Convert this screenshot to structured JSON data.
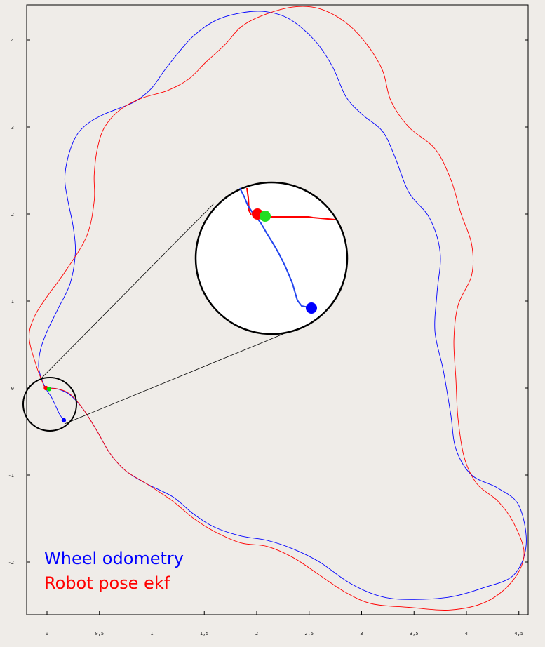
{
  "chart_data": {
    "type": "line",
    "title": "",
    "xlabel": "",
    "ylabel": "",
    "xlim": [
      -0.2,
      4.6
    ],
    "ylim": [
      -2.6,
      4.4
    ],
    "xticks": [
      {
        "value": 0,
        "label": "0"
      },
      {
        "value": 0.5,
        "label": "0,5"
      },
      {
        "value": 1,
        "label": "1"
      },
      {
        "value": 1.5,
        "label": "1,5"
      },
      {
        "value": 2,
        "label": "2"
      },
      {
        "value": 2.5,
        "label": "2,5"
      },
      {
        "value": 3,
        "label": "3"
      },
      {
        "value": 3.5,
        "label": "3,5"
      },
      {
        "value": 4,
        "label": "4"
      },
      {
        "value": 4.5,
        "label": "4,5"
      }
    ],
    "yticks": [
      {
        "value": -2,
        "label": "-2"
      },
      {
        "value": -1,
        "label": "-1"
      },
      {
        "value": 0,
        "label": "0"
      },
      {
        "value": 1,
        "label": "1"
      },
      {
        "value": 2,
        "label": "2"
      },
      {
        "value": 3,
        "label": "3"
      },
      {
        "value": 4,
        "label": "4"
      }
    ],
    "legend_position": "bottom-left",
    "series": [
      {
        "name": "Wheel odometry",
        "color": "#0000ff",
        "points": [
          [
            0.16,
            -0.37
          ],
          [
            0.12,
            -0.3
          ],
          [
            0.08,
            -0.2
          ],
          [
            0.04,
            -0.1
          ],
          [
            0.0,
            -0.03
          ],
          [
            -0.05,
            0.1
          ],
          [
            -0.08,
            0.25
          ],
          [
            -0.06,
            0.45
          ],
          [
            0.0,
            0.65
          ],
          [
            0.1,
            0.9
          ],
          [
            0.22,
            1.2
          ],
          [
            0.27,
            1.55
          ],
          [
            0.25,
            1.85
          ],
          [
            0.2,
            2.15
          ],
          [
            0.17,
            2.4
          ],
          [
            0.2,
            2.65
          ],
          [
            0.28,
            2.9
          ],
          [
            0.4,
            3.05
          ],
          [
            0.55,
            3.15
          ],
          [
            0.7,
            3.22
          ],
          [
            0.85,
            3.3
          ],
          [
            1.0,
            3.45
          ],
          [
            1.12,
            3.65
          ],
          [
            1.25,
            3.85
          ],
          [
            1.4,
            4.05
          ],
          [
            1.6,
            4.22
          ],
          [
            1.8,
            4.3
          ],
          [
            2.05,
            4.33
          ],
          [
            2.3,
            4.25
          ],
          [
            2.55,
            4.0
          ],
          [
            2.72,
            3.7
          ],
          [
            2.85,
            3.35
          ],
          [
            3.0,
            3.15
          ],
          [
            3.2,
            2.95
          ],
          [
            3.32,
            2.65
          ],
          [
            3.45,
            2.25
          ],
          [
            3.65,
            1.95
          ],
          [
            3.75,
            1.55
          ],
          [
            3.72,
            1.1
          ],
          [
            3.7,
            0.65
          ],
          [
            3.78,
            0.2
          ],
          [
            3.85,
            -0.3
          ],
          [
            3.9,
            -0.7
          ],
          [
            4.05,
            -1.0
          ],
          [
            4.3,
            -1.15
          ],
          [
            4.5,
            -1.35
          ],
          [
            4.57,
            -1.8
          ],
          [
            4.45,
            -2.15
          ],
          [
            4.15,
            -2.3
          ],
          [
            3.85,
            -2.4
          ],
          [
            3.5,
            -2.43
          ],
          [
            3.2,
            -2.4
          ],
          [
            2.9,
            -2.25
          ],
          [
            2.6,
            -2.0
          ],
          [
            2.35,
            -1.85
          ],
          [
            2.1,
            -1.75
          ],
          [
            1.85,
            -1.7
          ],
          [
            1.6,
            -1.6
          ],
          [
            1.4,
            -1.45
          ],
          [
            1.2,
            -1.25
          ],
          [
            0.95,
            -1.1
          ],
          [
            0.75,
            -0.95
          ],
          [
            0.6,
            -0.75
          ],
          [
            0.48,
            -0.5
          ],
          [
            0.35,
            -0.25
          ],
          [
            0.22,
            -0.08
          ],
          [
            0.1,
            -0.01
          ],
          [
            0.0,
            0.0
          ]
        ]
      },
      {
        "name": "Robot pose ekf",
        "color": "#ff0000",
        "points": [
          [
            -0.02,
            0.0
          ],
          [
            -0.1,
            0.25
          ],
          [
            -0.17,
            0.58
          ],
          [
            -0.12,
            0.82
          ],
          [
            0.0,
            1.05
          ],
          [
            0.18,
            1.35
          ],
          [
            0.38,
            1.75
          ],
          [
            0.45,
            2.15
          ],
          [
            0.45,
            2.45
          ],
          [
            0.48,
            2.75
          ],
          [
            0.55,
            3.0
          ],
          [
            0.7,
            3.2
          ],
          [
            0.9,
            3.33
          ],
          [
            1.15,
            3.42
          ],
          [
            1.35,
            3.55
          ],
          [
            1.52,
            3.75
          ],
          [
            1.7,
            3.95
          ],
          [
            1.85,
            4.15
          ],
          [
            2.05,
            4.28
          ],
          [
            2.35,
            4.38
          ],
          [
            2.6,
            4.36
          ],
          [
            2.85,
            4.2
          ],
          [
            3.05,
            3.95
          ],
          [
            3.2,
            3.65
          ],
          [
            3.28,
            3.3
          ],
          [
            3.45,
            3.0
          ],
          [
            3.7,
            2.75
          ],
          [
            3.85,
            2.4
          ],
          [
            3.95,
            2.0
          ],
          [
            4.05,
            1.65
          ],
          [
            4.05,
            1.3
          ],
          [
            3.92,
            0.95
          ],
          [
            3.88,
            0.55
          ],
          [
            3.9,
            0.1
          ],
          [
            3.92,
            -0.35
          ],
          [
            3.98,
            -0.8
          ],
          [
            4.1,
            -1.1
          ],
          [
            4.3,
            -1.3
          ],
          [
            4.45,
            -1.55
          ],
          [
            4.55,
            -1.9
          ],
          [
            4.45,
            -2.2
          ],
          [
            4.2,
            -2.45
          ],
          [
            3.85,
            -2.55
          ],
          [
            3.45,
            -2.52
          ],
          [
            3.1,
            -2.48
          ],
          [
            2.85,
            -2.35
          ],
          [
            2.6,
            -2.15
          ],
          [
            2.35,
            -1.95
          ],
          [
            2.1,
            -1.82
          ],
          [
            1.85,
            -1.78
          ],
          [
            1.6,
            -1.65
          ],
          [
            1.4,
            -1.5
          ],
          [
            1.2,
            -1.3
          ],
          [
            0.95,
            -1.1
          ],
          [
            0.75,
            -0.95
          ],
          [
            0.6,
            -0.75
          ],
          [
            0.48,
            -0.5
          ],
          [
            0.35,
            -0.25
          ],
          [
            0.22,
            -0.07
          ],
          [
            0.1,
            -0.01
          ],
          [
            -0.02,
            0.0
          ]
        ]
      }
    ],
    "markers": [
      {
        "name": "ekf-position",
        "x": -0.01,
        "y": 0.0,
        "color": "#ff0000"
      },
      {
        "name": "start-position",
        "x": 0.02,
        "y": -0.01,
        "color": "#00e000"
      },
      {
        "name": "odometry-position",
        "x": 0.16,
        "y": -0.37,
        "color": "#0000ff"
      }
    ]
  },
  "legend": {
    "odometry_label": "Wheel odometry",
    "ekf_label": "Robot pose ekf",
    "odometry_color": "#0000ff",
    "ekf_color": "#ff0000"
  }
}
